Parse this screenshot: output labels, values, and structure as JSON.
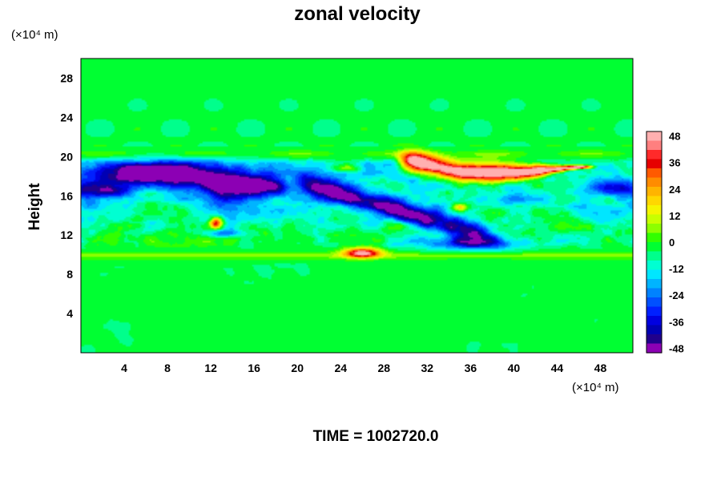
{
  "chart_data": {
    "type": "heatmap",
    "title": "zonal velocity",
    "ylabel": "Height",
    "xlabel": "",
    "x_unit_label": "(×10⁴ m)",
    "y_unit_label": "(×10⁴ m)",
    "xlim": [
      0,
      51
    ],
    "ylim": [
      0,
      30
    ],
    "x_ticks": [
      4,
      8,
      12,
      16,
      20,
      24,
      28,
      32,
      36,
      40,
      44,
      48
    ],
    "y_ticks": [
      4,
      8,
      12,
      16,
      20,
      24,
      28
    ],
    "colorbar": {
      "range": [
        -50,
        50
      ],
      "ticks": [
        48,
        36,
        24,
        12,
        0,
        -12,
        -24,
        -36,
        -48
      ],
      "colors": [
        "#ffb0b0",
        "#ff7f7f",
        "#ff2a2a",
        "#e60000",
        "#ff5a00",
        "#ff8c00",
        "#ffb400",
        "#ffd700",
        "#f5f500",
        "#c8ff00",
        "#8cff00",
        "#32ff00",
        "#00ff32",
        "#00ff8c",
        "#00ffd2",
        "#00e6ff",
        "#00b4ff",
        "#0082ff",
        "#0050ff",
        "#0020ff",
        "#0000e0",
        "#0000b4",
        "#20008c",
        "#8c00b4"
      ]
    },
    "time_label": "TIME = 1002720.0",
    "features": [
      {
        "kind": "band",
        "y": 20.2,
        "value": -2
      },
      {
        "kind": "band",
        "y": 9.8,
        "value": 6
      },
      {
        "kind": "jet",
        "x": [
          1,
          19
        ],
        "y": [
          16.5,
          19.5
        ],
        "value": -48
      },
      {
        "kind": "jet",
        "x": [
          20,
          38
        ],
        "y": [
          11.5,
          18
        ],
        "value": -40
      },
      {
        "kind": "jet",
        "x": [
          30,
          47
        ],
        "y": [
          18.5,
          19.8
        ],
        "value": 48
      },
      {
        "kind": "blob",
        "x": 12.5,
        "y": 13.2,
        "value": 35
      },
      {
        "kind": "blob",
        "x": 26,
        "y": 10.3,
        "value": 40
      },
      {
        "kind": "blob",
        "x": 49.5,
        "y": 16.5,
        "value": -30
      }
    ]
  }
}
